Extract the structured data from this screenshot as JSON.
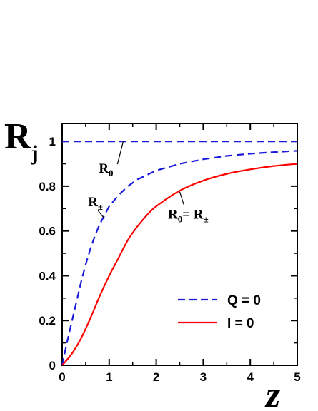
{
  "chart_data": {
    "type": "line",
    "title": "",
    "xlabel": "z",
    "ylabel_main": "R",
    "ylabel_sub": "j",
    "xlim": [
      0,
      5
    ],
    "ylim": [
      0,
      1.08
    ],
    "xticks": [
      0,
      1,
      2,
      3,
      4,
      5
    ],
    "xtick_labels": [
      "0",
      "1",
      "2",
      "3",
      "4",
      "5"
    ],
    "yticks": [
      0,
      0.2,
      0.4,
      0.6,
      0.8,
      1
    ],
    "ytick_labels": [
      "0",
      "0.2",
      "0.4",
      "0.6",
      "0.8",
      "1"
    ],
    "grid": false,
    "legend_position": "bottom-right",
    "series": [
      {
        "name": "Q = 0",
        "color": "#1a1adb",
        "style": "dashed",
        "x": [
          0,
          0.1,
          0.2,
          0.3,
          0.4,
          0.5,
          0.6,
          0.7,
          0.8,
          0.9,
          1.0,
          1.2,
          1.4,
          1.6,
          1.8,
          2.0,
          2.5,
          3.0,
          3.5,
          4.0,
          4.5,
          5.0
        ],
        "values": [
          0,
          0.1,
          0.19,
          0.28,
          0.37,
          0.45,
          0.52,
          0.58,
          0.63,
          0.67,
          0.71,
          0.76,
          0.8,
          0.83,
          0.85,
          0.87,
          0.9,
          0.92,
          0.935,
          0.945,
          0.952,
          0.958
        ]
      },
      {
        "name": "Q = 0",
        "color": "#1a1adb",
        "style": "dashed",
        "x": [
          0,
          5
        ],
        "values": [
          1,
          1
        ]
      },
      {
        "name": "I = 0",
        "color": "#ff0000",
        "style": "solid",
        "x": [
          0,
          0.2,
          0.4,
          0.6,
          0.8,
          1.0,
          1.2,
          1.4,
          1.6,
          1.8,
          2.0,
          2.5,
          3.0,
          3.5,
          4.0,
          4.5,
          5.0
        ],
        "values": [
          0,
          0.05,
          0.12,
          0.21,
          0.31,
          0.4,
          0.48,
          0.56,
          0.62,
          0.67,
          0.71,
          0.78,
          0.825,
          0.855,
          0.875,
          0.89,
          0.9
        ]
      }
    ],
    "legend": [
      {
        "label": "Q = 0",
        "color": "#1a1adb",
        "style": "dashed"
      },
      {
        "label": "I = 0",
        "color": "#ff0000",
        "style": "solid"
      }
    ],
    "annotations": [
      {
        "main": "R",
        "sub": "0",
        "tail": "",
        "tail_sub": "",
        "x": 0.78,
        "y": 0.86,
        "pointer_to": [
          1.3,
          1.0
        ]
      },
      {
        "main": "R",
        "sub": "±",
        "tail": "",
        "tail_sub": "",
        "x": 0.55,
        "y": 0.71,
        "pointer_to": [
          0.9,
          0.655
        ]
      },
      {
        "main": "R",
        "sub": "0",
        "tail": "= R",
        "tail_sub": "±",
        "x": 2.25,
        "y": 0.655,
        "pointer_to": [
          2.5,
          0.775
        ]
      }
    ]
  }
}
